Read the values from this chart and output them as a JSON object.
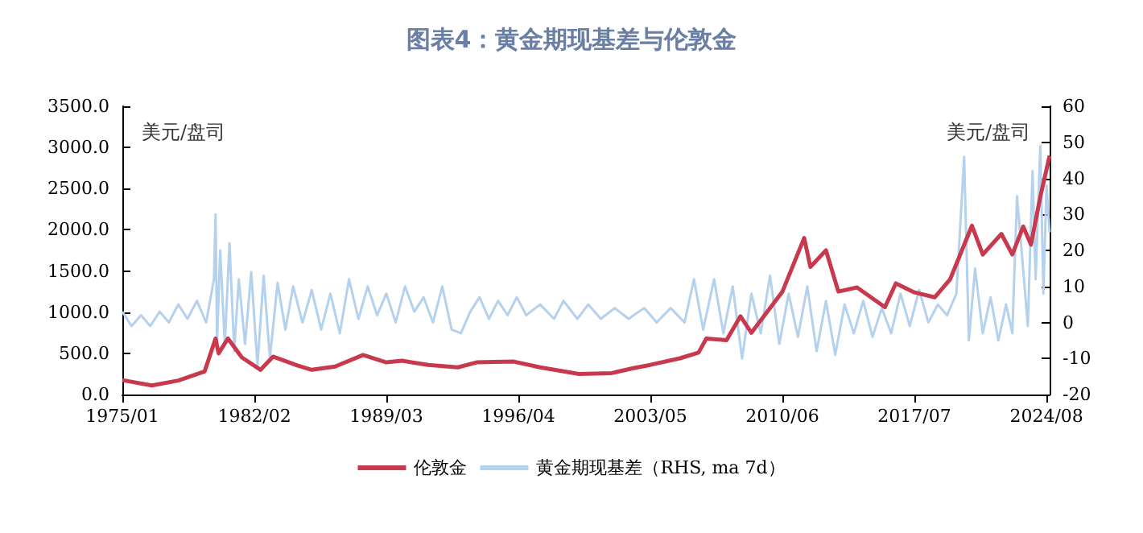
{
  "chart_data": {
    "type": "line",
    "title": "图表4：黄金期现基差与伦敦金",
    "ylabel": "美元/盘司",
    "y2label": "美元/盘司",
    "series": [
      {
        "name": "伦敦金",
        "color": "#c8394e",
        "x": [
          "1975-01",
          "1976-08",
          "1978-01",
          "1979-06",
          "1980-01",
          "1980-03",
          "1980-09",
          "1981-06",
          "1982-06",
          "1983-02",
          "1984-06",
          "1985-03",
          "1986-06",
          "1987-12",
          "1989-03",
          "1990-01",
          "1991-06",
          "1993-01",
          "1994-01",
          "1996-01",
          "1997-06",
          "1999-07",
          "2001-04",
          "2002-06",
          "2003-05",
          "2004-12",
          "2005-12",
          "2006-05",
          "2007-06",
          "2008-03",
          "2008-10",
          "2009-12",
          "2010-06",
          "2011-08",
          "2011-12",
          "2012-10",
          "2013-06",
          "2014-06",
          "2015-12",
          "2016-07",
          "2017-07",
          "2018-08",
          "2019-06",
          "2020-08",
          "2021-03",
          "2022-03",
          "2022-10",
          "2023-05",
          "2023-10",
          "2024-04",
          "2024-10"
        ],
        "values": [
          175,
          110,
          170,
          280,
          680,
          500,
          680,
          450,
          300,
          460,
          350,
          300,
          340,
          480,
          390,
          410,
          360,
          330,
          390,
          400,
          330,
          250,
          260,
          320,
          360,
          440,
          510,
          680,
          660,
          950,
          750,
          1100,
          1250,
          1900,
          1550,
          1750,
          1250,
          1300,
          1060,
          1350,
          1240,
          1180,
          1400,
          2050,
          1700,
          1950,
          1700,
          2040,
          1820,
          2400,
          2900
        ]
      },
      {
        "name": "黄金期现基差（RHS, ma 7d）",
        "color": "#b4d1ee",
        "axis": "y2",
        "x": [
          "1975-01",
          "1975-07",
          "1976-01",
          "1976-07",
          "1977-01",
          "1977-07",
          "1978-01",
          "1978-07",
          "1979-01",
          "1979-07",
          "1979-12",
          "1980-01",
          "1980-02",
          "1980-04",
          "1980-07",
          "1980-10",
          "1981-01",
          "1981-04",
          "1981-08",
          "1981-12",
          "1982-04",
          "1982-08",
          "1982-12",
          "1983-05",
          "1983-10",
          "1984-03",
          "1984-09",
          "1985-03",
          "1985-09",
          "1986-03",
          "1986-09",
          "1987-03",
          "1987-09",
          "1988-03",
          "1988-09",
          "1989-03",
          "1989-09",
          "1990-03",
          "1990-09",
          "1991-03",
          "1991-09",
          "1992-03",
          "1992-09",
          "1993-03",
          "1993-09",
          "1994-03",
          "1994-09",
          "1995-03",
          "1995-09",
          "1996-03",
          "1996-09",
          "1997-06",
          "1998-03",
          "1998-09",
          "1999-06",
          "2000-01",
          "2000-09",
          "2001-06",
          "2002-03",
          "2003-01",
          "2003-09",
          "2004-06",
          "2005-03",
          "2005-09",
          "2006-03",
          "2006-10",
          "2007-04",
          "2007-10",
          "2008-04",
          "2008-10",
          "2009-04",
          "2009-10",
          "2010-04",
          "2010-10",
          "2011-04",
          "2011-10",
          "2012-04",
          "2012-10",
          "2013-04",
          "2013-10",
          "2014-04",
          "2014-10",
          "2015-04",
          "2015-10",
          "2016-04",
          "2016-10",
          "2017-04",
          "2017-10",
          "2018-04",
          "2018-10",
          "2019-04",
          "2019-10",
          "2020-03",
          "2020-06",
          "2020-10",
          "2021-03",
          "2021-08",
          "2022-01",
          "2022-06",
          "2022-10",
          "2023-01",
          "2023-04",
          "2023-08",
          "2023-11",
          "2024-01",
          "2024-04",
          "2024-06",
          "2024-08",
          "2024-10"
        ],
        "values": [
          3,
          -1,
          2,
          -1,
          3,
          0,
          5,
          1,
          6,
          0,
          12,
          30,
          -5,
          20,
          -6,
          22,
          -8,
          12,
          -6,
          14,
          -12,
          13,
          -10,
          11,
          -2,
          10,
          0,
          9,
          -2,
          8,
          -3,
          12,
          1,
          10,
          2,
          8,
          0,
          10,
          3,
          7,
          0,
          10,
          -2,
          -3,
          3,
          7,
          1,
          6,
          2,
          7,
          2,
          5,
          1,
          6,
          1,
          5,
          1,
          4,
          1,
          4,
          0,
          4,
          0,
          12,
          -2,
          12,
          -3,
          10,
          -10,
          8,
          -3,
          13,
          -6,
          8,
          -4,
          10,
          -8,
          6,
          -9,
          5,
          -3,
          6,
          -4,
          4,
          -3,
          8,
          -1,
          9,
          0,
          5,
          2,
          8,
          46,
          -5,
          15,
          -3,
          7,
          -5,
          5,
          -3,
          35,
          20,
          -1,
          42,
          12,
          49,
          8,
          38,
          25
        ]
      }
    ],
    "xlim": [
      "1975-01",
      "2024-10"
    ],
    "xticks": [
      {
        "value": "1975-01",
        "label": "1975/01"
      },
      {
        "value": "1982-02",
        "label": "1982/02"
      },
      {
        "value": "1989-03",
        "label": "1989/03"
      },
      {
        "value": "1996-04",
        "label": "1996/04"
      },
      {
        "value": "2003-05",
        "label": "2003/05"
      },
      {
        "value": "2010-06",
        "label": "2010/06"
      },
      {
        "value": "2017-07",
        "label": "2017/07"
      },
      {
        "value": "2024-08",
        "label": "2024/08"
      }
    ],
    "ylim": [
      0,
      3500
    ],
    "yticks": [
      {
        "value": 0,
        "label": "0.0"
      },
      {
        "value": 500,
        "label": "500.0"
      },
      {
        "value": 1000,
        "label": "1000.0"
      },
      {
        "value": 1500,
        "label": "1500.0"
      },
      {
        "value": 2000,
        "label": "2000.0"
      },
      {
        "value": 2500,
        "label": "2500.0"
      },
      {
        "value": 3000,
        "label": "3000.0"
      },
      {
        "value": 3500,
        "label": "3500.0"
      }
    ],
    "y2lim": [
      -20,
      60
    ],
    "y2ticks": [
      -20,
      -10,
      0,
      10,
      20,
      30,
      40,
      50,
      60
    ],
    "grid": false,
    "legend": "bottom",
    "marker": "none",
    "line_style": "solid"
  }
}
